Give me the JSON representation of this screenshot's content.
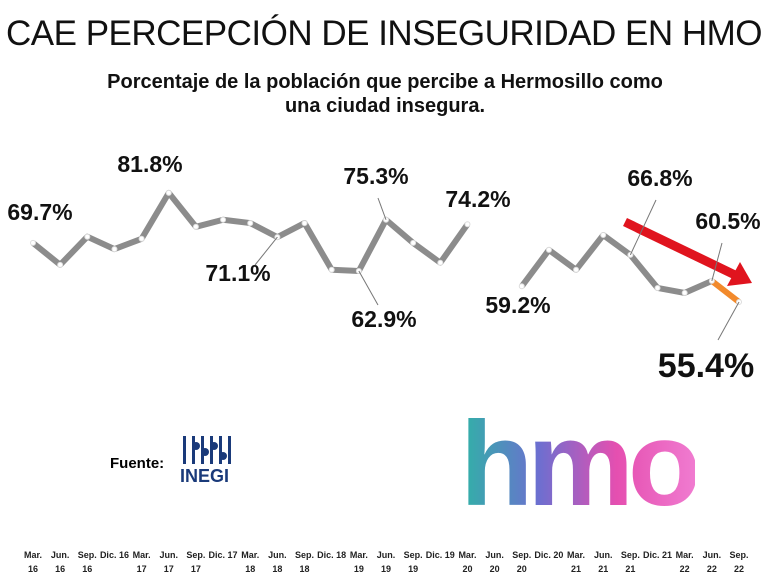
{
  "chart_data": {
    "type": "line",
    "title": "CAE PERCEPCIÓN DE INSEGURIDAD EN HMO",
    "subtitle": "Porcentaje de la población que percibe a Hermosillo como una ciudad insegura.",
    "categories": [
      "Mar. 16",
      "Jun. 16",
      "Sep. 16",
      "Dic. 16",
      "Mar. 17",
      "Jun. 17",
      "Sep. 17",
      "Dic. 17",
      "Mar. 18",
      "Jun. 18",
      "Sep. 18",
      "Dic. 18",
      "Mar. 19",
      "Jun. 19",
      "Sep. 19",
      "Dic. 19",
      "Mar. 20",
      "Jun. 20",
      "Sep. 20",
      "Dic. 20",
      "Mar. 21",
      "Jun. 21",
      "Sep. 21",
      "Dic. 21",
      "Mar. 22",
      "Jun. 22",
      "Sep. 22"
    ],
    "values": [
      69.7,
      64.4,
      71.2,
      68.2,
      70.7,
      81.8,
      73.6,
      75.3,
      74.5,
      71.1,
      74.5,
      63.2,
      62.9,
      75.3,
      69.7,
      64.9,
      74.2,
      null,
      59.2,
      68.0,
      63.2,
      71.6,
      66.8,
      58.8,
      57.6,
      60.5,
      55.4
    ],
    "value_labels": [
      "69.7%",
      null,
      null,
      null,
      null,
      "81.8%",
      null,
      null,
      null,
      "71.1%",
      null,
      null,
      "62.9%",
      "75.3%",
      null,
      null,
      "74.2%",
      null,
      "59.2%",
      null,
      null,
      null,
      "66.8%",
      null,
      null,
      "60.5%",
      "55.4%"
    ],
    "color": "#8c8c8c",
    "last_segment_color": "#f28a2c",
    "ylim": [
      45,
      90
    ],
    "source": "Fuente:",
    "source_logo": "INEGI",
    "brand_logo": "hmo"
  }
}
